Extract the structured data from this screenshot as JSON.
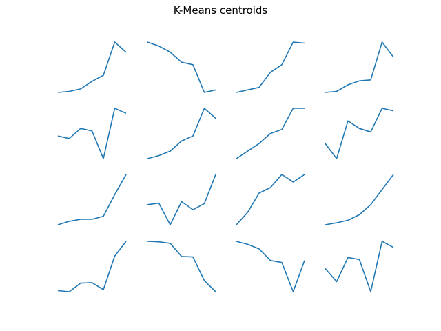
{
  "chart_data": {
    "title": "K-Means centroids",
    "type": "line",
    "series_color": "#1f77b4",
    "grid": false,
    "axes_visible": false,
    "layout": {
      "rows": 4,
      "cols": 4
    },
    "x": [
      0,
      1,
      2,
      3,
      4,
      5,
      6
    ],
    "subplots": [
      {
        "values": [
          0.0,
          0.02,
          0.07,
          0.22,
          0.34,
          1.0,
          0.8
        ]
      },
      {
        "values": [
          1.0,
          0.92,
          0.8,
          0.6,
          0.55,
          0.0,
          0.05
        ]
      },
      {
        "values": [
          0.0,
          0.05,
          0.1,
          0.4,
          0.55,
          1.0,
          0.98
        ]
      },
      {
        "values": [
          0.0,
          0.02,
          0.15,
          0.23,
          0.25,
          1.0,
          0.7
        ]
      },
      {
        "values": [
          0.45,
          0.4,
          0.6,
          0.55,
          0.0,
          1.0,
          0.9
        ]
      },
      {
        "values": [
          0.0,
          0.06,
          0.15,
          0.35,
          0.45,
          1.0,
          0.8
        ]
      },
      {
        "values": [
          0.0,
          0.15,
          0.3,
          0.5,
          0.58,
          1.0,
          1.0
        ]
      },
      {
        "values": [
          0.3,
          0.0,
          0.75,
          0.6,
          0.53,
          1.0,
          0.95
        ]
      },
      {
        "values": [
          0.0,
          0.07,
          0.11,
          0.11,
          0.17,
          0.6,
          1.0
        ]
      },
      {
        "values": [
          0.4,
          0.43,
          0.0,
          0.46,
          0.3,
          0.42,
          1.0
        ]
      },
      {
        "values": [
          0.0,
          0.25,
          0.63,
          0.74,
          1.0,
          0.85,
          1.0
        ]
      },
      {
        "values": [
          0.0,
          0.04,
          0.09,
          0.2,
          0.4,
          0.7,
          1.0
        ]
      },
      {
        "values": [
          0.02,
          0.0,
          0.17,
          0.18,
          0.04,
          0.71,
          1.0
        ]
      },
      {
        "values": [
          1.0,
          0.99,
          0.96,
          0.7,
          0.69,
          0.22,
          0.0
        ]
      },
      {
        "values": [
          1.0,
          0.94,
          0.85,
          0.62,
          0.58,
          0.0,
          0.62
        ]
      },
      {
        "values": [
          0.46,
          0.2,
          0.68,
          0.64,
          0.0,
          1.0,
          0.88
        ]
      }
    ]
  }
}
